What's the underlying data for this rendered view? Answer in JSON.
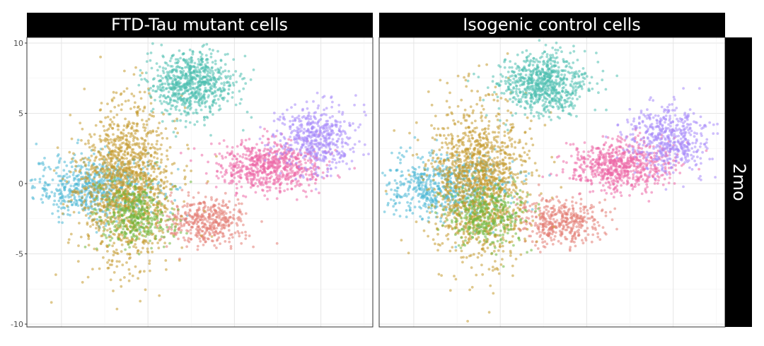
{
  "chart_data": {
    "type": "scatter",
    "title": "",
    "xlabel": "",
    "ylabel": "",
    "ylim": [
      -10.2,
      10.4
    ],
    "xlim": [
      -12,
      8
    ],
    "y_ticks": [
      10,
      5,
      0,
      -5,
      -10
    ],
    "grid": true,
    "legend": "none",
    "panels": [
      {
        "label": "FTD-Tau mutant cells"
      },
      {
        "label": "Isogenic control cells"
      }
    ],
    "row_strip": "2mo",
    "clusters": [
      {
        "color": "#4db8d6",
        "x_range": [
          -11.6,
          -4.5
        ],
        "y_range": [
          -2.5,
          2.0
        ],
        "points": 650
      },
      {
        "color": "#e37d74",
        "x_range": [
          -4.0,
          0.8
        ],
        "y_range": [
          -4.5,
          -1.0
        ],
        "points": 420
      },
      {
        "color": "#c49a2f",
        "x_range": [
          -9.0,
          -3.5
        ],
        "y_range": [
          -5.5,
          5.5
        ],
        "points": 1400
      },
      {
        "color": "#4ec0b0",
        "x_range": [
          -5.0,
          0.0
        ],
        "y_range": [
          5.0,
          9.3
        ],
        "points": 750
      },
      {
        "color": "#ec6aa8",
        "x_range": [
          -1.0,
          5.0
        ],
        "y_range": [
          -0.5,
          3.0
        ],
        "points": 700
      },
      {
        "color": "#a78bfa",
        "x_range": [
          2.5,
          7.0
        ],
        "y_range": [
          1.0,
          5.5
        ],
        "points": 500
      },
      {
        "color": "#6fb83e",
        "x_range": [
          -8.0,
          -3.5
        ],
        "y_range": [
          -4.5,
          0.0
        ],
        "points": 350
      }
    ]
  }
}
